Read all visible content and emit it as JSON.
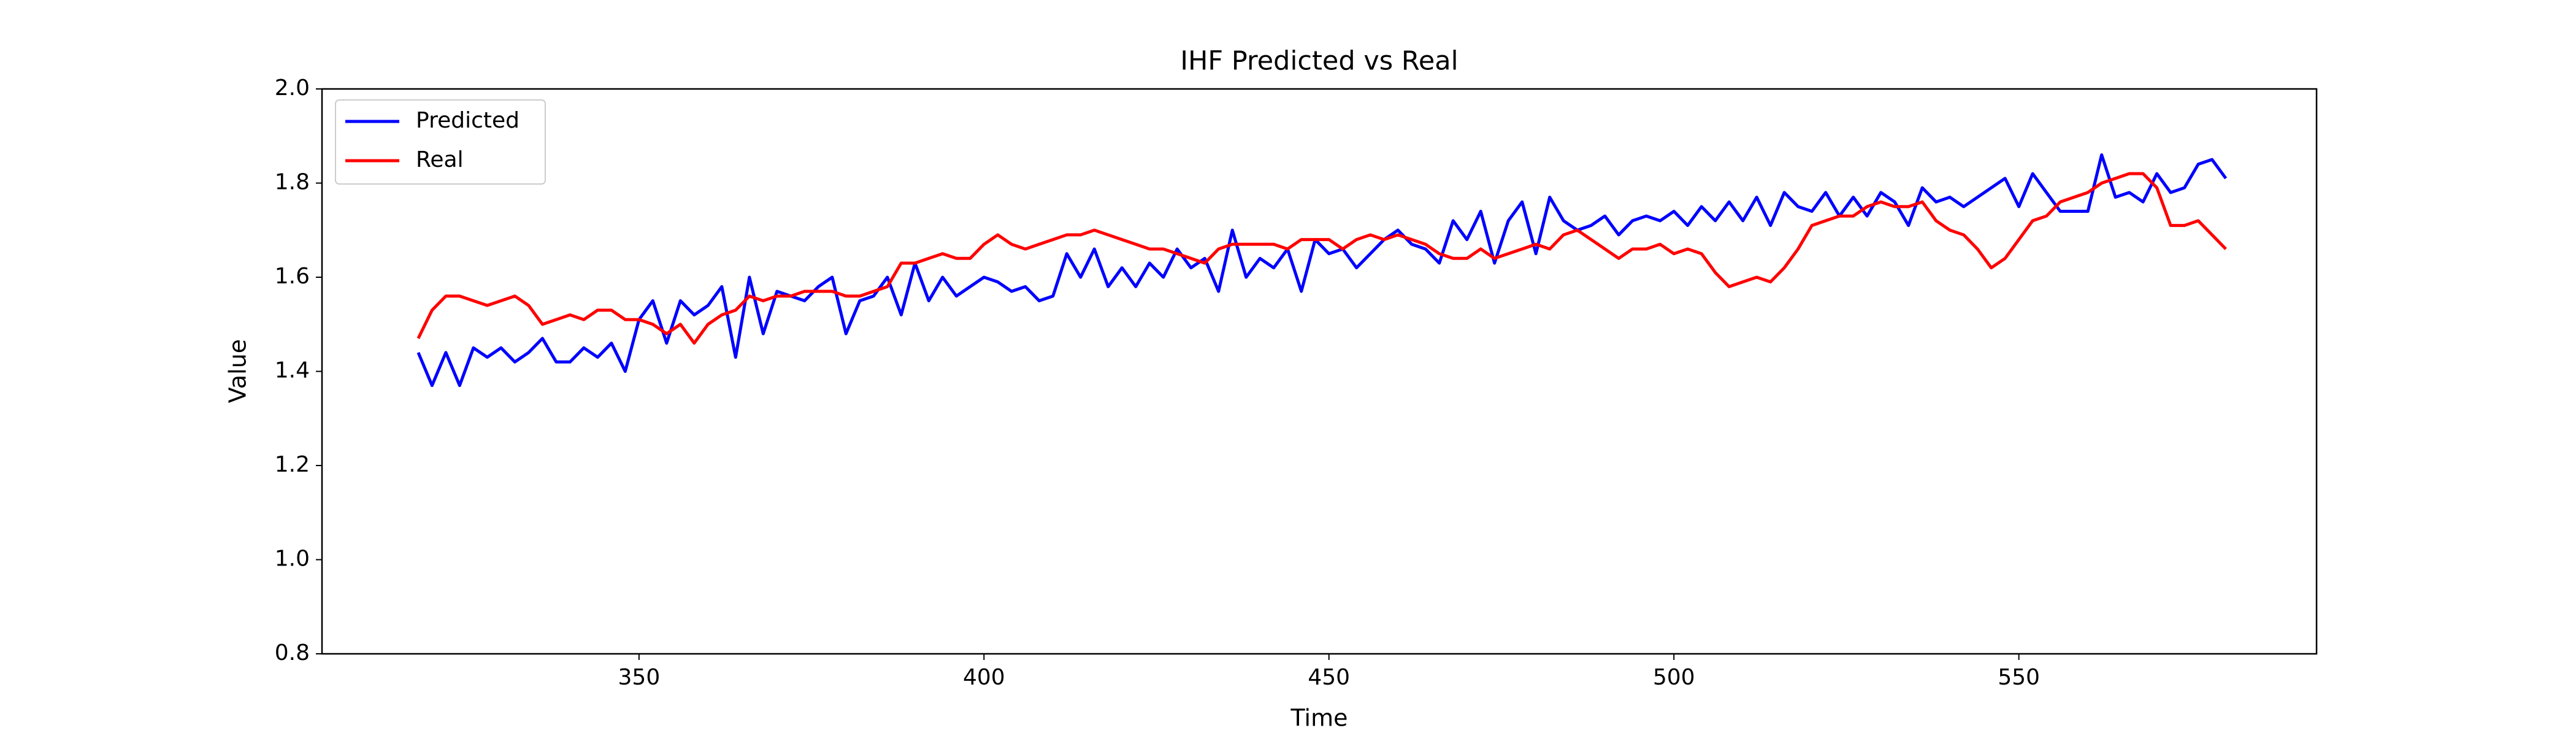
{
  "chart_data": {
    "type": "line",
    "title": "IHF Predicted vs Real",
    "x_label": "Time",
    "y_label": "Value",
    "x": [
      318,
      320,
      322,
      324,
      326,
      328,
      330,
      332,
      334,
      336,
      338,
      340,
      342,
      344,
      346,
      348,
      350,
      352,
      354,
      356,
      358,
      360,
      362,
      364,
      366,
      368,
      370,
      372,
      374,
      376,
      378,
      380,
      382,
      384,
      386,
      388,
      390,
      392,
      394,
      396,
      398,
      400,
      402,
      404,
      406,
      408,
      410,
      412,
      414,
      416,
      418,
      420,
      422,
      424,
      426,
      428,
      430,
      432,
      434,
      436,
      438,
      440,
      442,
      444,
      446,
      448,
      450,
      452,
      454,
      456,
      458,
      460,
      462,
      464,
      466,
      468,
      470,
      472,
      474,
      476,
      478,
      480,
      482,
      484,
      486,
      488,
      490,
      492,
      494,
      496,
      498,
      500,
      502,
      504,
      506,
      508,
      510,
      512,
      514,
      516,
      518,
      520,
      522,
      524,
      526,
      528,
      530,
      532,
      534,
      536,
      538,
      540,
      542,
      544,
      546,
      548,
      550,
      552,
      554,
      556,
      558,
      560,
      562,
      564,
      566,
      568,
      570,
      572,
      574,
      576,
      578,
      580
    ],
    "series": [
      {
        "name": "Predicted",
        "color": "#0000ff",
        "values": [
          1.44,
          1.37,
          1.44,
          1.37,
          1.45,
          1.43,
          1.45,
          1.42,
          1.44,
          1.47,
          1.42,
          1.42,
          1.45,
          1.43,
          1.46,
          1.4,
          1.51,
          1.55,
          1.46,
          1.55,
          1.52,
          1.54,
          1.58,
          1.43,
          1.6,
          1.48,
          1.57,
          1.56,
          1.55,
          1.58,
          1.6,
          1.48,
          1.55,
          1.56,
          1.6,
          1.52,
          1.63,
          1.55,
          1.6,
          1.56,
          1.58,
          1.6,
          1.59,
          1.57,
          1.58,
          1.55,
          1.56,
          1.65,
          1.6,
          1.66,
          1.58,
          1.62,
          1.58,
          1.63,
          1.6,
          1.66,
          1.62,
          1.64,
          1.57,
          1.7,
          1.6,
          1.64,
          1.62,
          1.66,
          1.57,
          1.68,
          1.65,
          1.66,
          1.62,
          1.65,
          1.68,
          1.7,
          1.67,
          1.66,
          1.63,
          1.72,
          1.68,
          1.74,
          1.63,
          1.72,
          1.76,
          1.65,
          1.77,
          1.72,
          1.7,
          1.71,
          1.73,
          1.69,
          1.72,
          1.73,
          1.72,
          1.74,
          1.71,
          1.75,
          1.72,
          1.76,
          1.72,
          1.77,
          1.71,
          1.78,
          1.75,
          1.74,
          1.78,
          1.73,
          1.77,
          1.73,
          1.78,
          1.76,
          1.71,
          1.79,
          1.76,
          1.77,
          1.75,
          1.77,
          1.79,
          1.81,
          1.75,
          1.82,
          1.78,
          1.74,
          1.74,
          1.74,
          1.86,
          1.77,
          1.78,
          1.76,
          1.82,
          1.78,
          1.79,
          1.84,
          1.85,
          1.81
        ]
      },
      {
        "name": "Real",
        "color": "#ff0000",
        "values": [
          1.47,
          1.53,
          1.56,
          1.56,
          1.55,
          1.54,
          1.55,
          1.56,
          1.54,
          1.5,
          1.51,
          1.52,
          1.51,
          1.53,
          1.53,
          1.51,
          1.51,
          1.5,
          1.48,
          1.5,
          1.46,
          1.5,
          1.52,
          1.53,
          1.56,
          1.55,
          1.56,
          1.56,
          1.57,
          1.57,
          1.57,
          1.56,
          1.56,
          1.57,
          1.58,
          1.63,
          1.63,
          1.64,
          1.65,
          1.64,
          1.64,
          1.67,
          1.69,
          1.67,
          1.66,
          1.67,
          1.68,
          1.69,
          1.69,
          1.7,
          1.69,
          1.68,
          1.67,
          1.66,
          1.66,
          1.65,
          1.64,
          1.63,
          1.66,
          1.67,
          1.67,
          1.67,
          1.67,
          1.66,
          1.68,
          1.68,
          1.68,
          1.66,
          1.68,
          1.69,
          1.68,
          1.69,
          1.68,
          1.67,
          1.65,
          1.64,
          1.64,
          1.66,
          1.64,
          1.65,
          1.66,
          1.67,
          1.66,
          1.69,
          1.7,
          1.68,
          1.66,
          1.64,
          1.66,
          1.66,
          1.67,
          1.65,
          1.66,
          1.65,
          1.61,
          1.58,
          1.59,
          1.6,
          1.59,
          1.62,
          1.66,
          1.71,
          1.72,
          1.73,
          1.73,
          1.75,
          1.76,
          1.75,
          1.75,
          1.76,
          1.72,
          1.7,
          1.69,
          1.66,
          1.62,
          1.64,
          1.68,
          1.72,
          1.73,
          1.76,
          1.77,
          1.78,
          1.8,
          1.81,
          1.82,
          1.82,
          1.79,
          1.71,
          1.71,
          1.72,
          1.69,
          1.66
        ]
      }
    ],
    "xlim": [
      304.05,
      593.15
    ],
    "xticks": [
      350,
      400,
      450,
      500,
      550
    ],
    "ylim": [
      0.8,
      2.0
    ],
    "yticks": [
      0.8,
      {
        "value": 1,
        "label": "1.0"
      },
      1.2,
      1.4,
      1.6,
      1.8,
      {
        "value": 2,
        "label": "2.0"
      }
    ],
    "legend": "upper left"
  }
}
